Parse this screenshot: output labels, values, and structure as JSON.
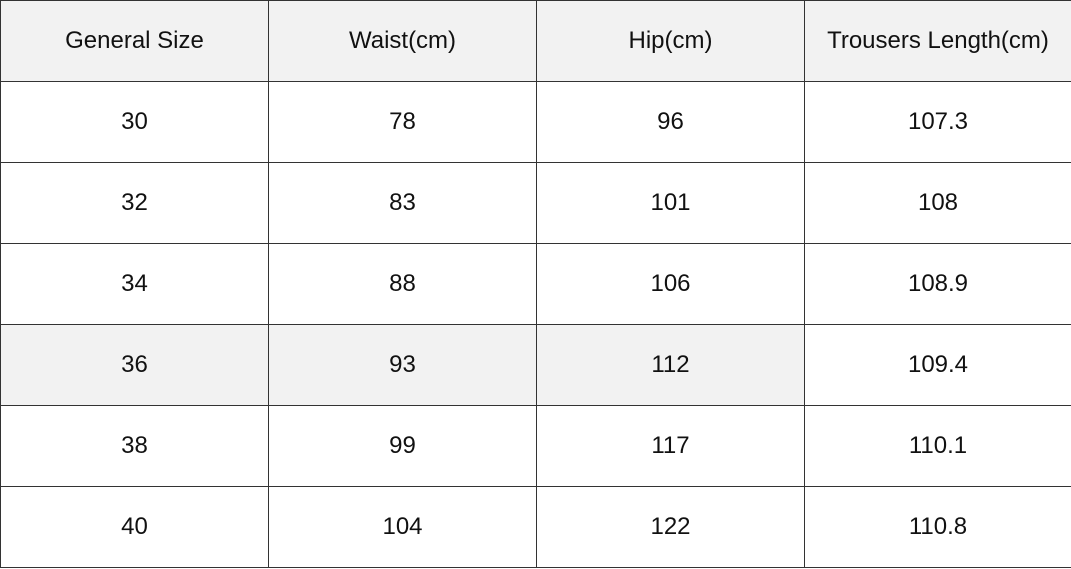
{
  "table": {
    "header": [
      "General Size",
      "Waist(cm)",
      "Hip(cm)",
      "Trousers Length(cm)"
    ],
    "rows": [
      [
        30,
        78,
        96,
        107.3
      ],
      [
        32,
        83,
        101,
        108
      ],
      [
        34,
        88,
        106,
        108.9
      ],
      [
        36,
        93,
        112,
        109.4
      ],
      [
        38,
        99,
        117,
        110.1
      ],
      [
        40,
        104,
        122,
        110.8
      ]
    ]
  }
}
